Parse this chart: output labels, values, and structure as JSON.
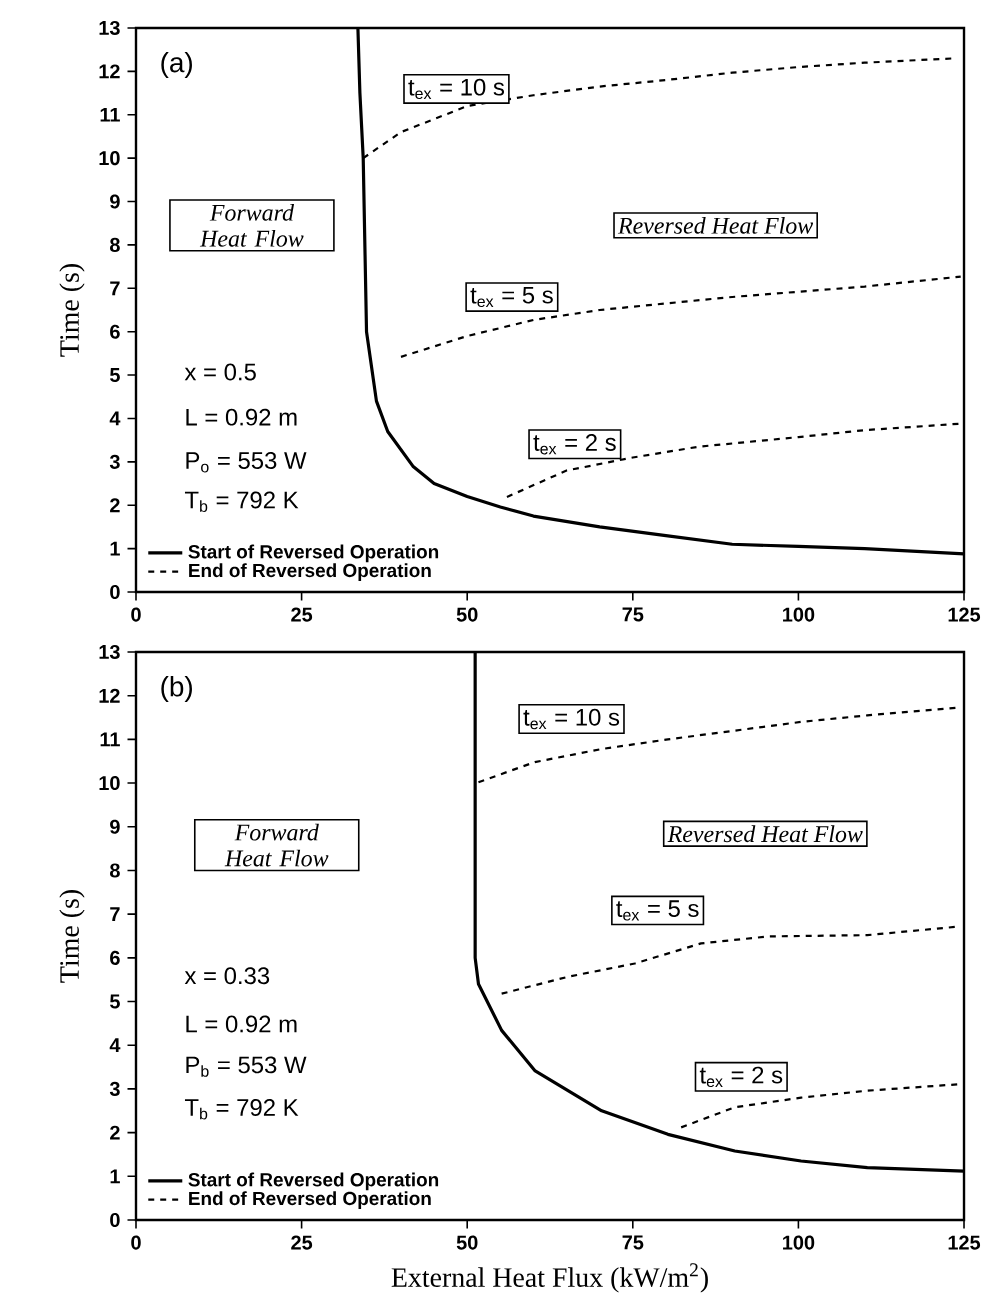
{
  "chart_data": [
    {
      "type": "line",
      "ylabel": "Time  (s)",
      "xlim": [
        0,
        125
      ],
      "ylim": [
        0,
        13
      ],
      "xticks": [
        0,
        25,
        50,
        75,
        100,
        125
      ],
      "yticks": [
        0,
        1,
        2,
        3,
        4,
        5,
        6,
        7,
        8,
        9,
        10,
        11,
        12,
        13
      ],
      "legend": "bottom left",
      "marker": "none",
      "annotations": [
        "(a)",
        "Forward Heat Flow",
        "Reversed Heat Flow",
        "x = 0.5",
        "L = 0.92 m",
        "P$_{o}$ = 553 W",
        "T$_{b}$ = 792 K",
        "t$_{ex}$ = 10 s",
        "t$_{ex}$ = 5 s",
        "t$_{ex}$ = 2 s"
      ],
      "series": [
        {
          "name": "Start of Reversed Operation",
          "color": "#000000",
          "line_style": "solid",
          "x": [
            33.5,
            33.8,
            34.3,
            34.8,
            36.3,
            38,
            41.8,
            45,
            50,
            55,
            60,
            70,
            80,
            90,
            100,
            110,
            125
          ],
          "values": [
            13,
            11.5,
            10,
            6,
            4.4,
            3.7,
            2.9,
            2.5,
            2.2,
            1.96,
            1.75,
            1.5,
            1.3,
            1.1,
            1.05,
            1.0,
            0.88
          ]
        },
        {
          "name": "End of Reversed Operation",
          "color": "#000000",
          "line_style": "dashed",
          "x": [
            34.3,
            40,
            50,
            60,
            70,
            80,
            90,
            100,
            110,
            123.5
          ],
          "values": [
            10.0,
            10.6,
            11.2,
            11.45,
            11.65,
            11.8,
            11.97,
            12.1,
            12.2,
            12.3
          ]
        },
        {
          "color": "#000000",
          "line_style": "dashed",
          "x": [
            40,
            50,
            60,
            70,
            80,
            90,
            100,
            110,
            124.5
          ],
          "values": [
            5.42,
            5.9,
            6.27,
            6.5,
            6.65,
            6.8,
            6.92,
            7.04,
            7.27
          ]
        },
        {
          "color": "#000000",
          "line_style": "dashed",
          "x": [
            56,
            65,
            75,
            85,
            100,
            110,
            124.5
          ],
          "values": [
            2.19,
            2.8,
            3.1,
            3.35,
            3.57,
            3.73,
            3.88
          ]
        }
      ]
    },
    {
      "type": "line",
      "xlabel": "External Heat Flux  (kW/m$^{2}$)",
      "ylabel": "Time  (s)",
      "xlim": [
        0,
        125
      ],
      "ylim": [
        0,
        13
      ],
      "xticks": [
        0,
        25,
        50,
        75,
        100,
        125
      ],
      "yticks": [
        0,
        1,
        2,
        3,
        4,
        5,
        6,
        7,
        8,
        9,
        10,
        11,
        12,
        13
      ],
      "legend": "bottom left",
      "marker": "none",
      "annotations": [
        "(b)",
        "Forward Heat Flow",
        "Reversed Heat Flow",
        "x = 0.33",
        "L = 0.92 m",
        "P$_{b}$ = 553 W",
        "T$_{b}$ = 792 K",
        "t$_{ex}$ = 10 s",
        "t$_{ex}$ = 5 s",
        "t$_{ex}$ = 2 s"
      ],
      "series": [
        {
          "name": "Start of Reversed Operation",
          "color": "#000000",
          "line_style": "solid",
          "x": [
            51.2,
            51.2,
            51.7,
            55.2,
            60.2,
            70.3,
            80.3,
            90.4,
            100.4,
            110.4,
            125
          ],
          "values": [
            13,
            6,
            5.4,
            4.34,
            3.42,
            2.5,
            1.96,
            1.58,
            1.35,
            1.2,
            1.12
          ]
        },
        {
          "name": "End of Reversed Operation",
          "color": "#000000",
          "line_style": "dashed",
          "x": [
            51.7,
            60.2,
            70.3,
            80.3,
            90.4,
            100.4,
            110.4,
            124.5
          ],
          "values": [
            10.02,
            10.48,
            10.78,
            11.0,
            11.2,
            11.4,
            11.55,
            11.73
          ]
        },
        {
          "color": "#000000",
          "line_style": "dashed",
          "x": [
            55.2,
            65.3,
            75.3,
            85.3,
            95.4,
            110.4,
            124.5
          ],
          "values": [
            5.18,
            5.57,
            5.87,
            6.33,
            6.49,
            6.52,
            6.72
          ]
        },
        {
          "color": "#000000",
          "line_style": "dashed",
          "x": [
            82.3,
            90.4,
            100.4,
            110.4,
            124.5
          ],
          "values": [
            2.12,
            2.58,
            2.8,
            2.96,
            3.11
          ]
        }
      ]
    }
  ]
}
